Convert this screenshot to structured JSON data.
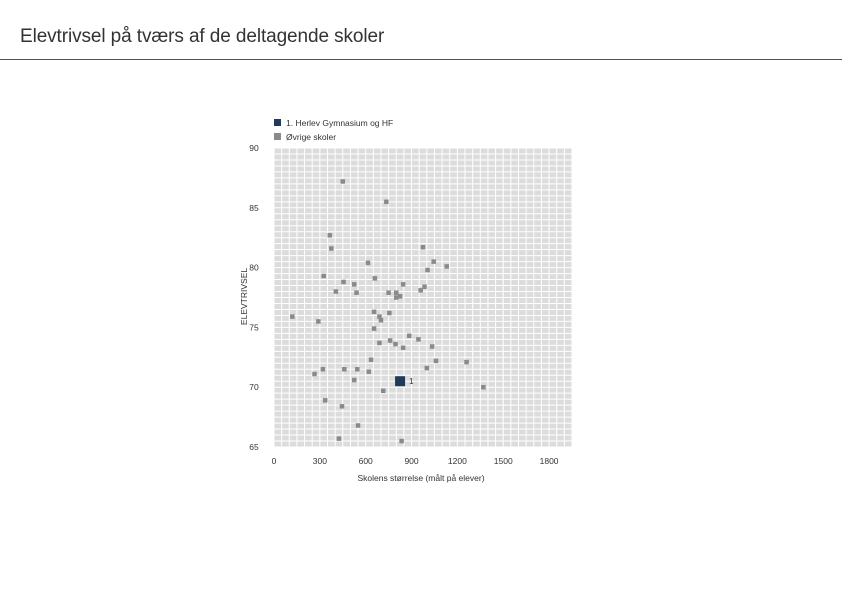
{
  "page": {
    "title": "Elevtrivsel på tværs af de deltagende skoler"
  },
  "chart_data": {
    "type": "scatter",
    "xlabel": "Skolens størrelse (målt på elever)",
    "ylabel": "ELEVTRIVSEL",
    "xlim": [
      0,
      1950
    ],
    "ylim": [
      65,
      90
    ],
    "xticks": [
      0,
      300,
      600,
      900,
      1200,
      1500,
      1800
    ],
    "yticks": [
      65,
      70,
      75,
      80,
      85,
      90
    ],
    "grid": true,
    "legend_position": "top-left",
    "series": [
      {
        "name": "1. Herlev Gymnasium og HF",
        "color": "#1f3a5a",
        "point_label": "1",
        "points": [
          [
            825,
            70.5
          ]
        ]
      },
      {
        "name": "Øvrige skoler",
        "color": "#8a8a8a",
        "points": [
          [
            450,
            87.2
          ],
          [
            735,
            85.5
          ],
          [
            365,
            82.7
          ],
          [
            375,
            81.6
          ],
          [
            975,
            81.7
          ],
          [
            615,
            80.4
          ],
          [
            1045,
            80.5
          ],
          [
            1130,
            80.1
          ],
          [
            1005,
            79.8
          ],
          [
            325,
            79.3
          ],
          [
            660,
            79.1
          ],
          [
            455,
            78.8
          ],
          [
            525,
            78.6
          ],
          [
            845,
            78.6
          ],
          [
            985,
            78.4
          ],
          [
            405,
            78.0
          ],
          [
            540,
            77.9
          ],
          [
            750,
            77.9
          ],
          [
            960,
            78.1
          ],
          [
            800,
            77.9
          ],
          [
            825,
            77.6
          ],
          [
            800,
            77.5
          ],
          [
            120,
            75.9
          ],
          [
            655,
            76.3
          ],
          [
            755,
            76.2
          ],
          [
            690,
            75.9
          ],
          [
            700,
            75.6
          ],
          [
            290,
            75.5
          ],
          [
            655,
            74.9
          ],
          [
            885,
            74.3
          ],
          [
            945,
            74.0
          ],
          [
            760,
            73.9
          ],
          [
            690,
            73.7
          ],
          [
            795,
            73.6
          ],
          [
            845,
            73.3
          ],
          [
            1035,
            73.4
          ],
          [
            635,
            72.3
          ],
          [
            1060,
            72.2
          ],
          [
            1260,
            72.1
          ],
          [
            320,
            71.5
          ],
          [
            460,
            71.5
          ],
          [
            545,
            71.5
          ],
          [
            620,
            71.3
          ],
          [
            1000,
            71.6
          ],
          [
            265,
            71.1
          ],
          [
            525,
            70.6
          ],
          [
            1370,
            70.0
          ],
          [
            715,
            69.7
          ],
          [
            335,
            68.9
          ],
          [
            445,
            68.4
          ],
          [
            550,
            66.8
          ],
          [
            425,
            65.7
          ],
          [
            835,
            65.5
          ]
        ]
      }
    ]
  }
}
